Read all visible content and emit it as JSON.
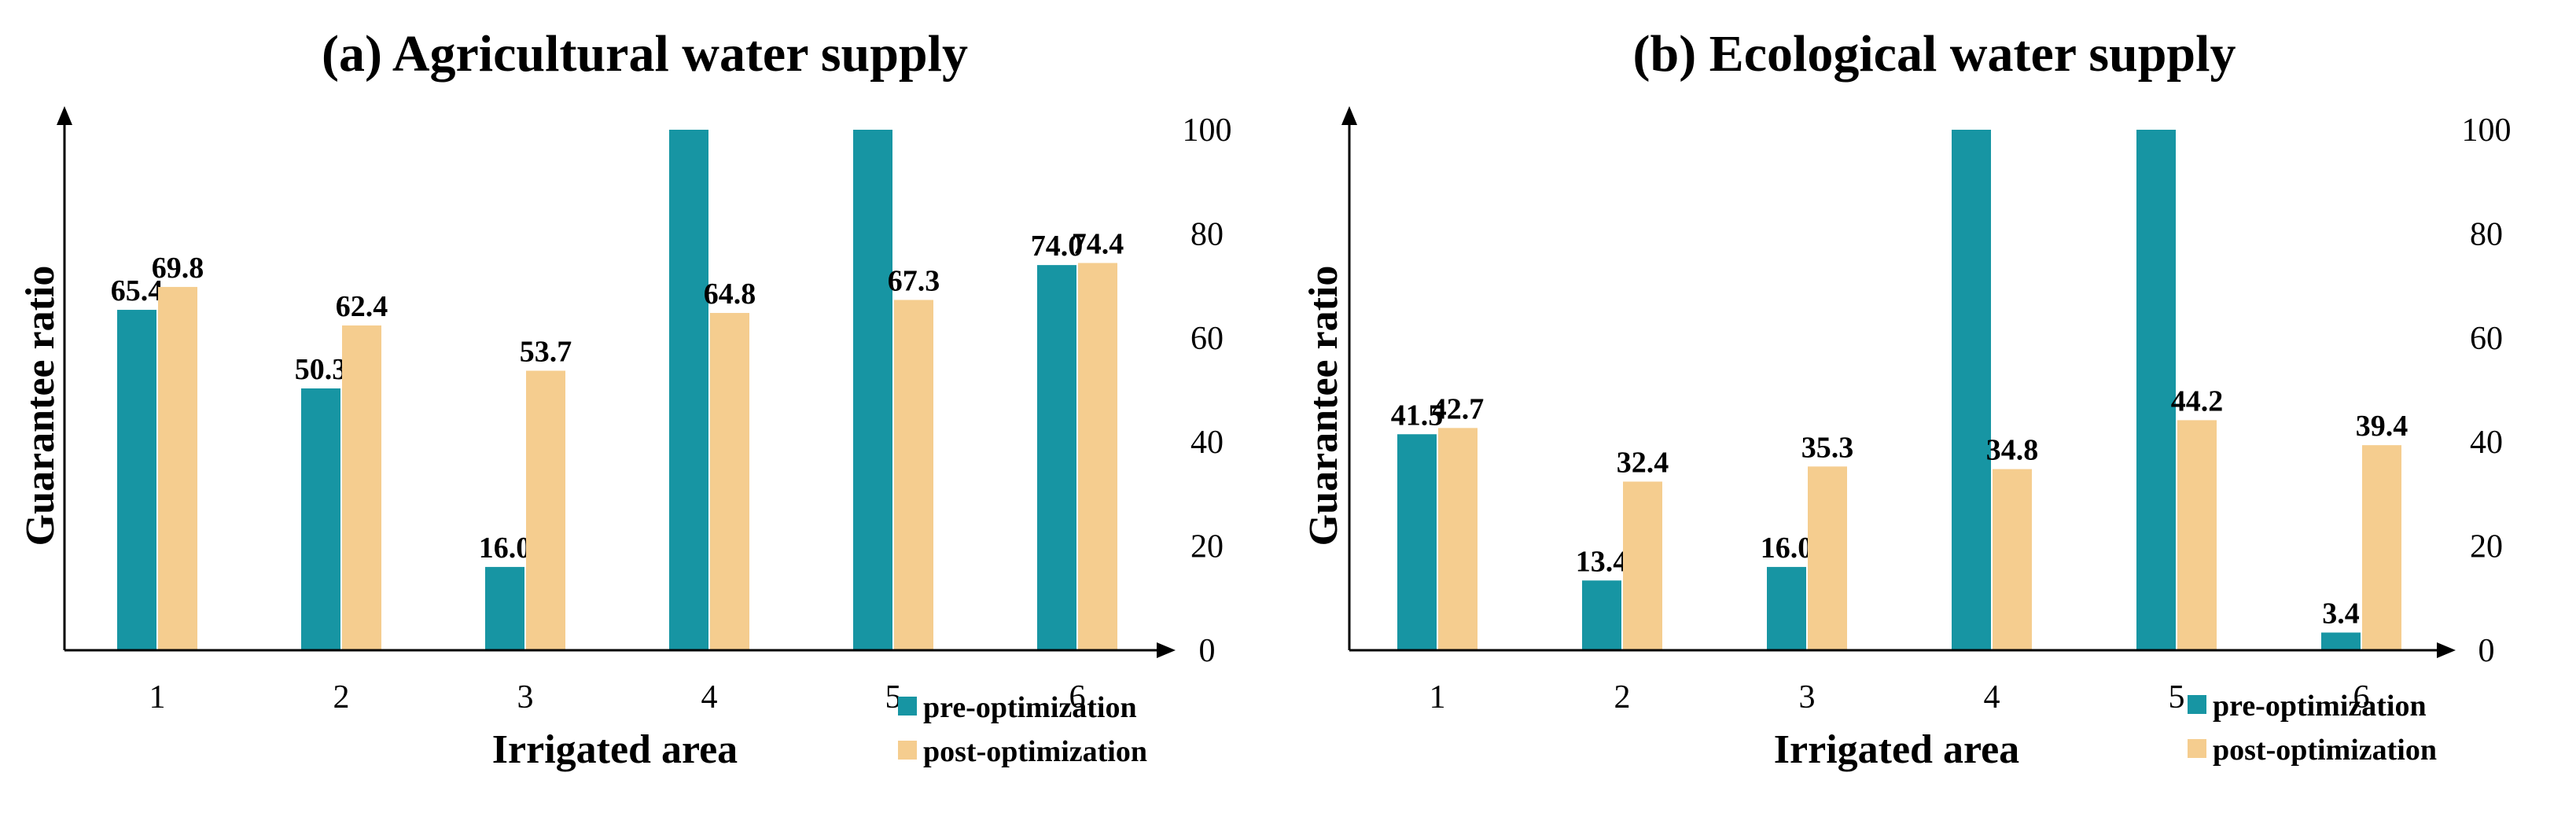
{
  "chart_data": [
    {
      "type": "bar",
      "title": "(a) Agricultural water supply",
      "xlabel": "Irrigated area",
      "ylabel": "Guarantee ratio",
      "categories": [
        "1",
        "2",
        "3",
        "4",
        "5",
        "6"
      ],
      "series": [
        {
          "name": "pre-optimization",
          "values": [
            65.4,
            50.3,
            16.0,
            100,
            100,
            74.0
          ],
          "labels": [
            "65.4",
            "50.3",
            "16.0",
            "",
            "",
            "74.0"
          ]
        },
        {
          "name": "post-optimization",
          "values": [
            69.8,
            62.4,
            53.7,
            64.8,
            67.3,
            74.4
          ],
          "labels": [
            "69.8",
            "62.4",
            "53.7",
            "64.8",
            "67.3",
            "74.4"
          ]
        }
      ],
      "ylim": [
        0,
        100
      ],
      "yticks": [
        "0",
        "20",
        "40",
        "60",
        "80",
        "100"
      ],
      "y_axis_side": "right",
      "grid": false,
      "legend_position": "bottom-right"
    },
    {
      "type": "bar",
      "title": "(b) Ecological water supply",
      "xlabel": "Irrigated area",
      "ylabel": "Guarantee ratio",
      "categories": [
        "1",
        "2",
        "3",
        "4",
        "5",
        "6"
      ],
      "series": [
        {
          "name": "pre-optimization",
          "values": [
            41.5,
            13.4,
            16.0,
            100,
            100,
            3.4
          ],
          "labels": [
            "41.5",
            "13.4",
            "16.0",
            "",
            "",
            "3.4"
          ]
        },
        {
          "name": "post-optimization",
          "values": [
            42.7,
            32.4,
            35.3,
            34.8,
            44.2,
            39.4
          ],
          "labels": [
            "42.7",
            "32.4",
            "35.3",
            "34.8",
            "44.2",
            "39.4"
          ]
        }
      ],
      "ylim": [
        0,
        100
      ],
      "yticks": [
        "0",
        "20",
        "40",
        "60",
        "80",
        "100"
      ],
      "y_axis_side": "right",
      "grid": false,
      "legend_position": "bottom-right"
    }
  ],
  "colors": {
    "pre": "#1795a3",
    "post": "#f5cd8f",
    "axis": "#000000"
  }
}
